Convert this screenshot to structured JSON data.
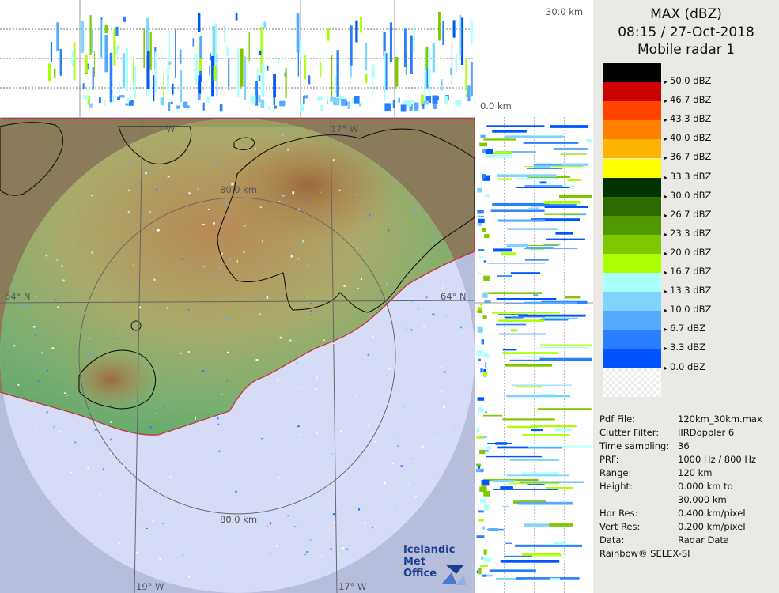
{
  "product": {
    "title": "MAX (dBZ)",
    "datetime": "08:15 / 27-Oct-2018",
    "radar": "Mobile radar 1"
  },
  "axes": {
    "top_height_max": "30.0 km",
    "top_height_zero": "0.0 km",
    "ring_label_north": "80.0 km",
    "ring_label_south": "80.0 km",
    "lon_label_west": "19° W",
    "lon_label_east": "17° W",
    "lon_label_top_west": "W",
    "lon_label_top_east": "17° W",
    "lat_label_left": "64° N",
    "lat_label_right": "64° N"
  },
  "legend": {
    "unit": "dBZ",
    "colors": [
      "#000000",
      "#cc0000",
      "#ff4400",
      "#ff8000",
      "#ffb400",
      "#ffff00",
      "#003300",
      "#2b6b00",
      "#4f9a00",
      "#7fc800",
      "#aaff00",
      "#aaffff",
      "#7fd4ff",
      "#55aaff",
      "#2a7fff",
      "#0055ff",
      "#ffffff"
    ],
    "labels": [
      "50.0 dBZ",
      "46.7 dBZ",
      "43.3 dBZ",
      "40.0 dBZ",
      "36.7 dBZ",
      "33.3 dBZ",
      "30.0 dBZ",
      "26.7 dBZ",
      "23.3 dBZ",
      "20.0 dBZ",
      "16.7 dBZ",
      "13.3 dBZ",
      "10.0 dBZ",
      "6.7 dBZ",
      "3.3 dBZ",
      "0.0 dBZ"
    ]
  },
  "info": [
    {
      "key": "Pdf File:",
      "value": "120km_30km.max"
    },
    {
      "key": "Clutter Filter:",
      "value": "IIRDoppler 6"
    },
    {
      "key": "Time sampling:",
      "value": "36"
    },
    {
      "key": "PRF:",
      "value": "1000 Hz / 800 Hz"
    },
    {
      "key": "Range:",
      "value": "120 km"
    },
    {
      "key": "Height:",
      "value": "0.000 km to"
    },
    {
      "key": "",
      "value": "30.000 km"
    },
    {
      "key": "Hor Res:",
      "value": "0.400 km/pixel"
    },
    {
      "key": "Vert Res:",
      "value": "0.200 km/pixel"
    },
    {
      "key": "Data:",
      "value": "Radar Data"
    }
  ],
  "footer": "Rainbow® SELEX-SI",
  "brand": {
    "line1": "Icelandic Met",
    "line2": "Office"
  }
}
